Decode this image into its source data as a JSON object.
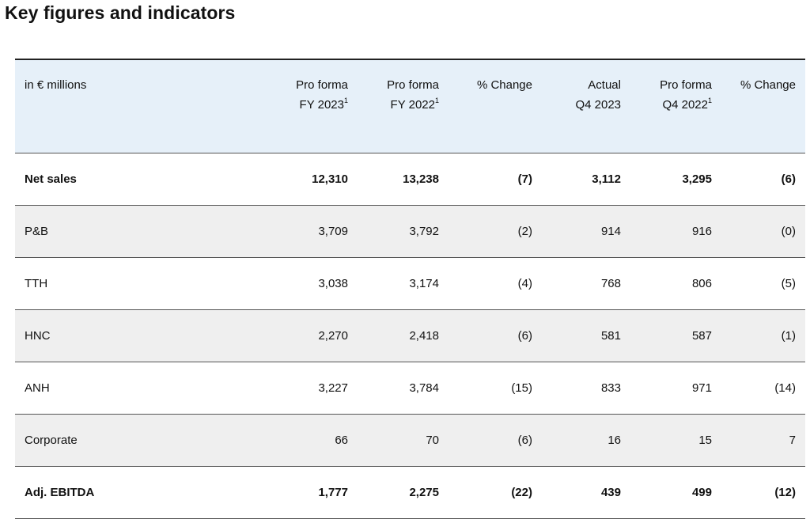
{
  "title": "Key figures and indicators",
  "table": {
    "columns": [
      {
        "line1": "in € millions",
        "line2": "",
        "footnote": ""
      },
      {
        "line1": "Pro forma",
        "line2": "FY 2023",
        "footnote": "1"
      },
      {
        "line1": "Pro forma",
        "line2": "FY 2022",
        "footnote": "1"
      },
      {
        "line1": "% Change",
        "line2": "",
        "footnote": ""
      },
      {
        "line1": "Actual",
        "line2": "Q4 2023",
        "footnote": ""
      },
      {
        "line1": "Pro forma",
        "line2": "Q4 2022",
        "footnote": "1"
      },
      {
        "line1": "% Change",
        "line2": "",
        "footnote": ""
      }
    ],
    "rows": [
      {
        "cells": [
          "Net sales",
          "12,310",
          "13,238",
          "(7)",
          "3,112",
          "3,295",
          "(6)"
        ],
        "bold": true,
        "shaded": false
      },
      {
        "cells": [
          "P&B",
          "3,709",
          "3,792",
          "(2)",
          "914",
          "916",
          "(0)"
        ],
        "bold": false,
        "shaded": true
      },
      {
        "cells": [
          "TTH",
          "3,038",
          "3,174",
          "(4)",
          "768",
          "806",
          "(5)"
        ],
        "bold": false,
        "shaded": false
      },
      {
        "cells": [
          "HNC",
          "2,270",
          "2,418",
          "(6)",
          "581",
          "587",
          "(1)"
        ],
        "bold": false,
        "shaded": true
      },
      {
        "cells": [
          "ANH",
          "3,227",
          "3,784",
          "(15)",
          "833",
          "971",
          "(14)"
        ],
        "bold": false,
        "shaded": false
      },
      {
        "cells": [
          "Corporate",
          "66",
          "70",
          "(6)",
          "16",
          "15",
          "7"
        ],
        "bold": false,
        "shaded": true
      },
      {
        "cells": [
          "Adj. EBITDA",
          "1,777",
          "2,275",
          "(22)",
          "439",
          "499",
          "(12)"
        ],
        "bold": true,
        "shaded": false
      }
    ]
  },
  "colors": {
    "header_background": "#e6f0f9",
    "shaded_row_background": "#efefef",
    "rule_color": "#555555"
  }
}
